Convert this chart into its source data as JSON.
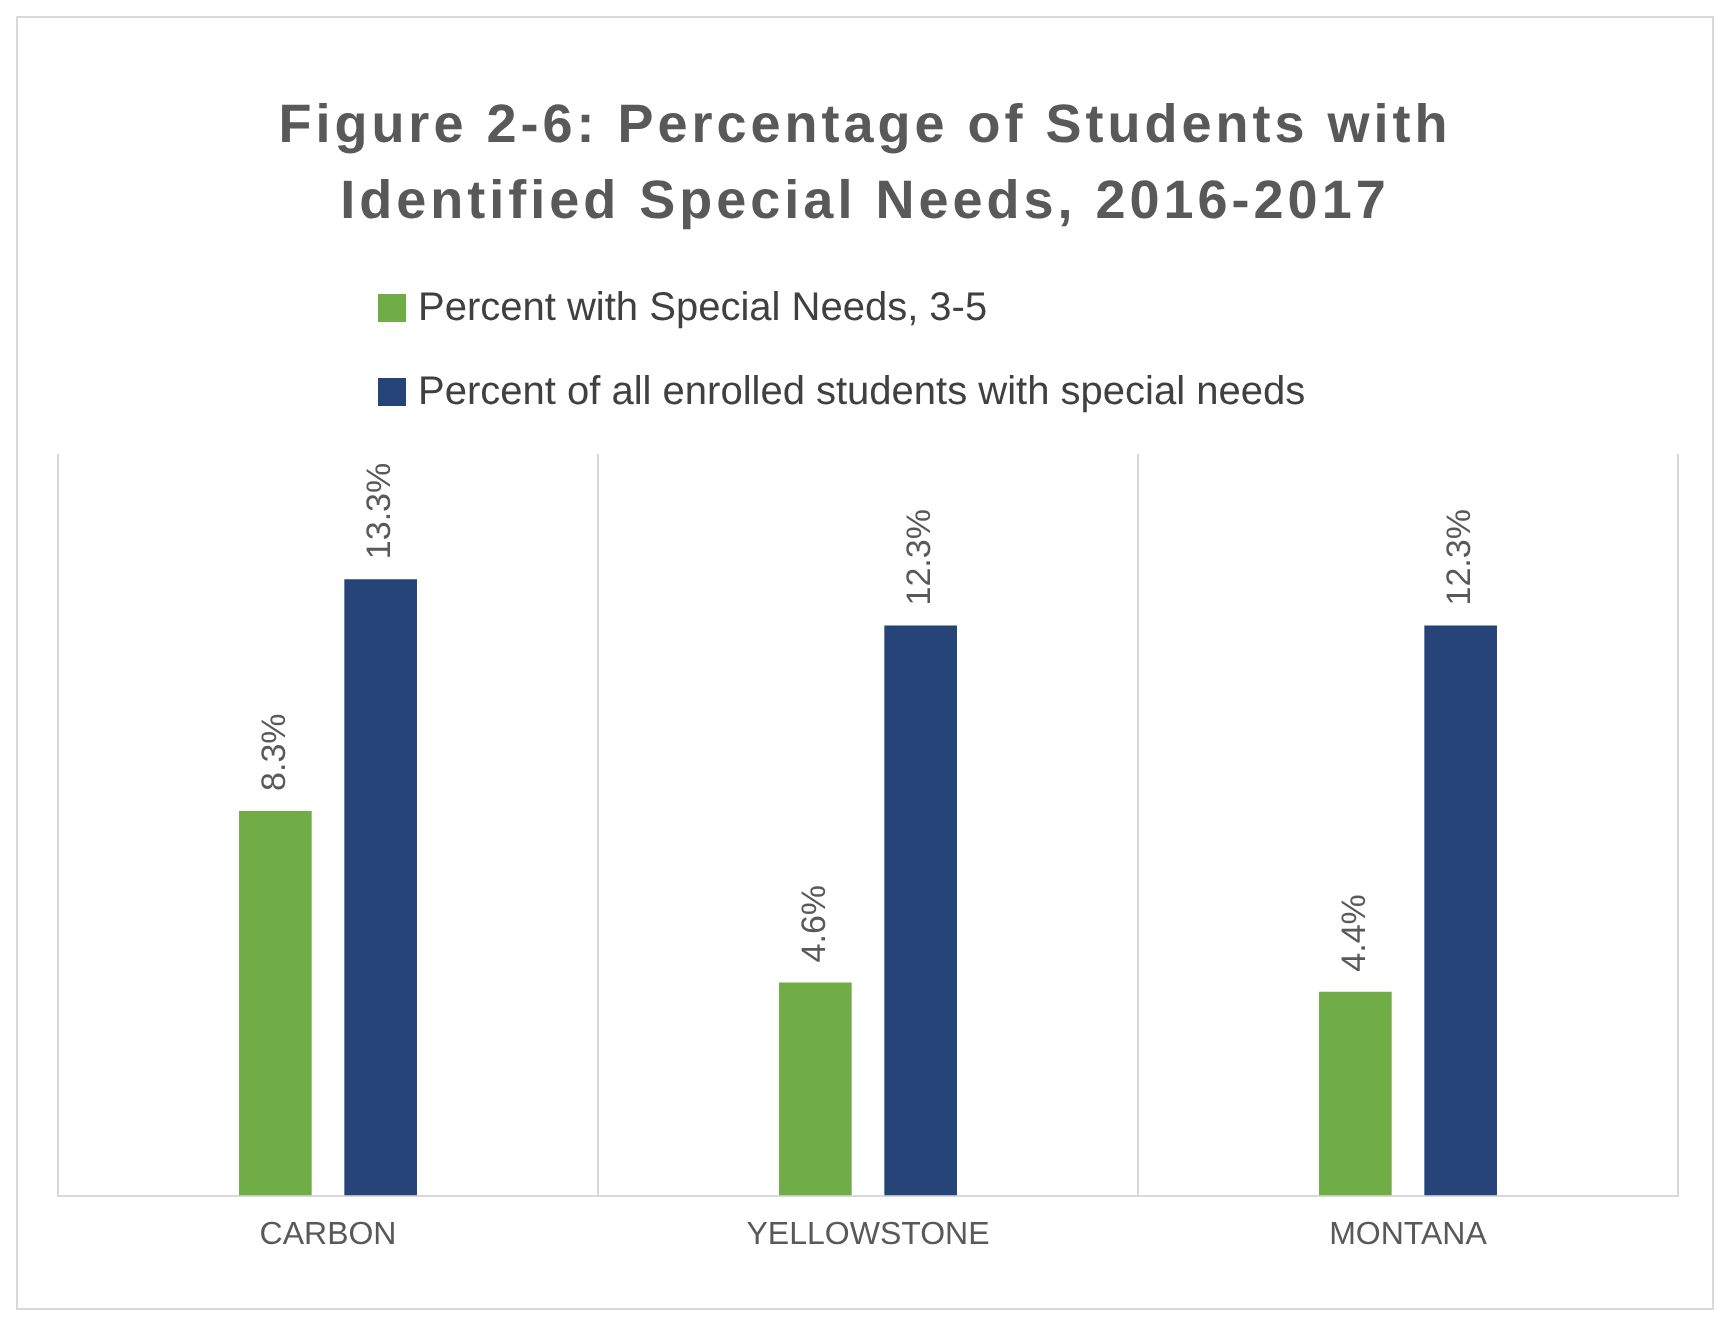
{
  "chart_data": {
    "type": "bar",
    "title": "Figure 2-6: Percentage of Students with Identified Special Needs, 2016-2017",
    "categories": [
      "CARBON",
      "YELLOWSTONE",
      "MONTANA"
    ],
    "series": [
      {
        "name": "Percent with Special Needs, 3-5",
        "color": "#70ad47",
        "values": [
          8.3,
          4.6,
          4.4
        ],
        "value_labels": [
          "8.3%",
          "4.6%",
          "4.4%"
        ]
      },
      {
        "name": "Percent of all enrolled students with special needs",
        "color": "#264478",
        "values": [
          13.3,
          12.3,
          12.3
        ],
        "value_labels": [
          "13.3%",
          "12.3%",
          "12.3%"
        ]
      }
    ],
    "ylim": [
      0,
      16
    ],
    "grid": "x",
    "legend": "top",
    "tick_labels": "x"
  }
}
